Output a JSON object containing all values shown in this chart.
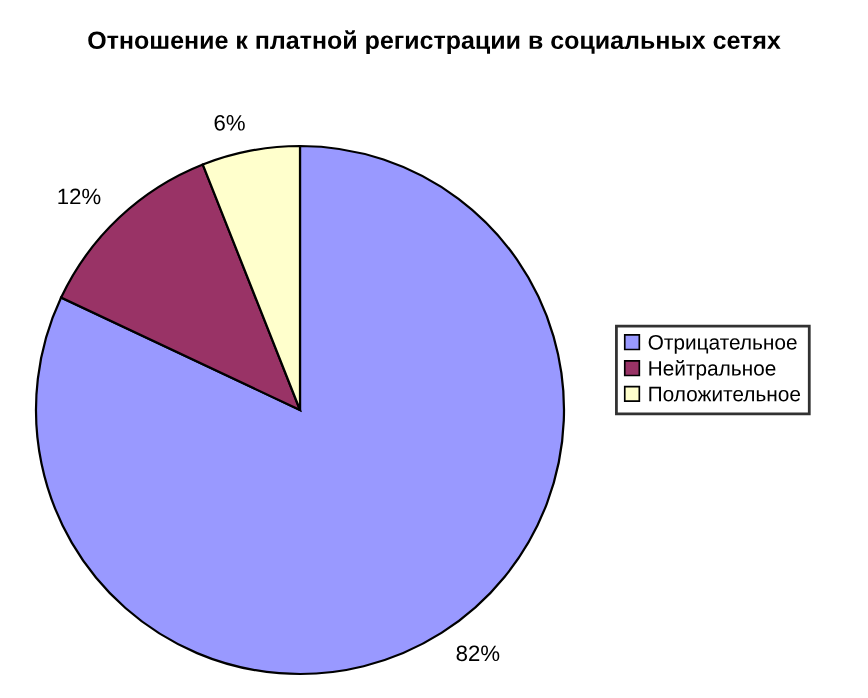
{
  "chart_data": {
    "type": "pie",
    "title": "Отношение к платной регистрации в социальных сетях",
    "categories": [
      "Отрицательное",
      "Нейтральное",
      "Положительное"
    ],
    "values": [
      82,
      12,
      6
    ],
    "colors": [
      "#9999ff",
      "#993366",
      "#ffffcc"
    ],
    "value_labels": [
      "82%",
      "12%",
      "6%"
    ],
    "legend": "right"
  }
}
